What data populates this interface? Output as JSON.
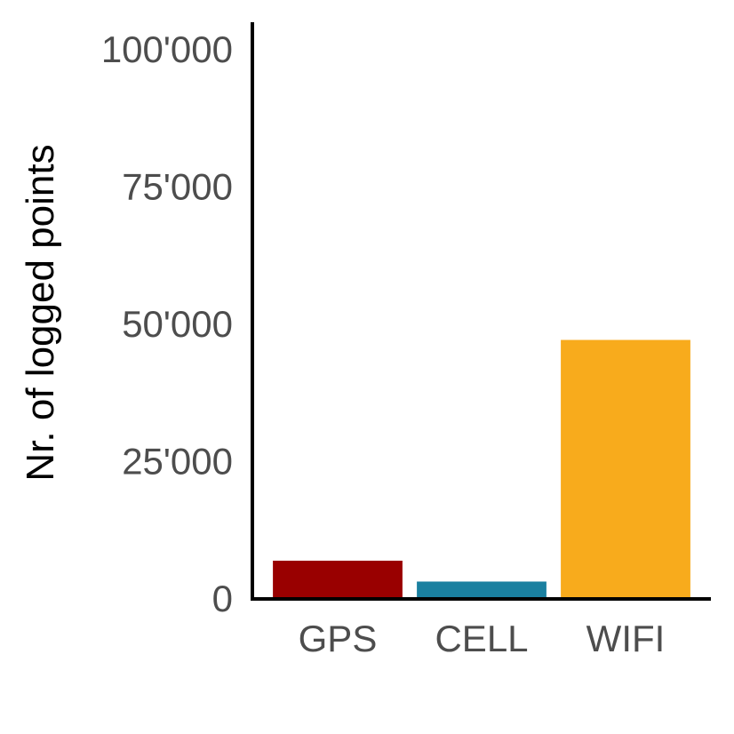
{
  "chart_data": {
    "type": "bar",
    "title": "",
    "xlabel": "",
    "ylabel": "Nr. of logged points",
    "categories": [
      "GPS",
      "CELL",
      "WIFI"
    ],
    "values": [
      6800,
      3000,
      47000
    ],
    "colors": [
      "#990000",
      "#1a80a0",
      "#f8ab1c"
    ],
    "ylim": [
      0,
      100000
    ],
    "yticks": [
      0,
      25000,
      50000,
      75000,
      100000
    ],
    "ytick_labels": [
      "0",
      "25'000",
      "50'000",
      "75'000",
      "100'000"
    ],
    "grid": false,
    "legend": "none"
  }
}
